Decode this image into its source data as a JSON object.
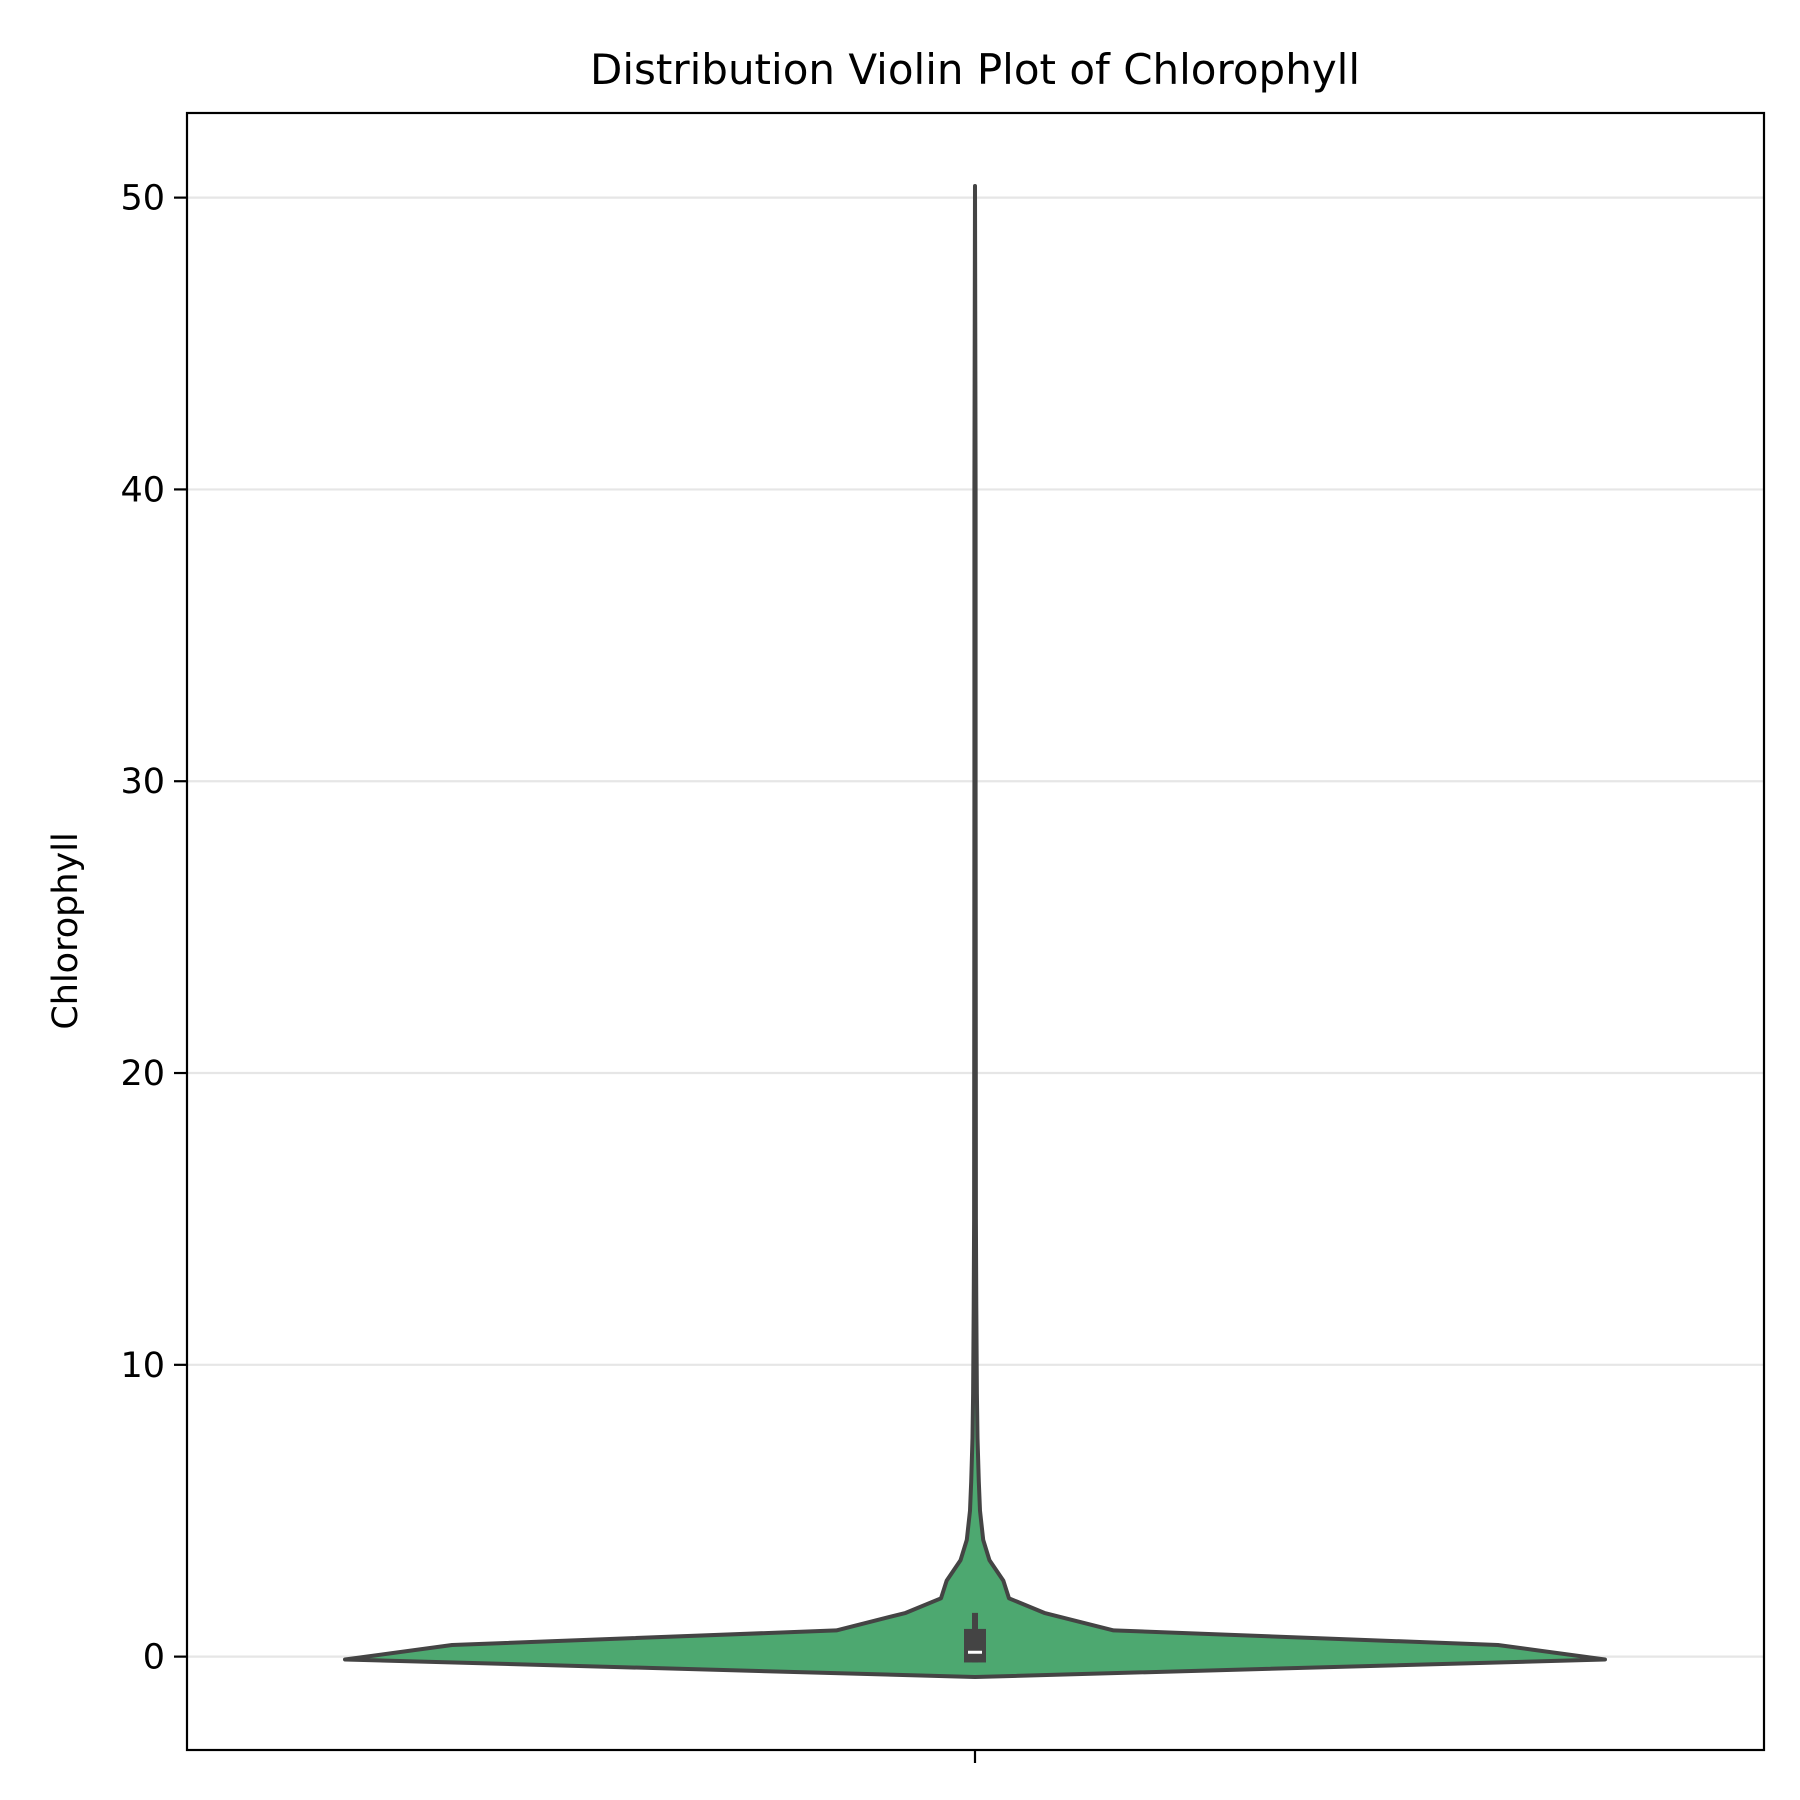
{
  "chart_data": {
    "type": "violin",
    "title": "Distribution Violin Plot of Chlorophyll",
    "xlabel": "",
    "ylabel": "Chlorophyll",
    "ylim": [
      -3.2,
      52.9
    ],
    "yticks": [
      0,
      10,
      20,
      30,
      40,
      50
    ],
    "ytick_labels": [
      "0",
      "10",
      "20",
      "30",
      "40",
      "50"
    ],
    "grid": {
      "y": true,
      "x": false
    },
    "colors": {
      "fill": "#4da870",
      "outline": "#444444",
      "grid": "#e6e6e6",
      "median": "#ffffff"
    },
    "violin": {
      "y": [
        -0.7,
        -0.1,
        0.4,
        0.9,
        1.5,
        2.0,
        2.6,
        3.3,
        4.0,
        5.0,
        6.0,
        7.5,
        9.0,
        12.0,
        15.0,
        20.0,
        30.0,
        40.0,
        50.4
      ],
      "density": [
        0.0,
        1.0,
        0.83,
        0.22,
        0.11,
        0.054,
        0.045,
        0.023,
        0.013,
        0.008,
        0.006,
        0.004,
        0.003,
        0.002,
        0.0015,
        0.0012,
        0.001,
        0.001,
        0.0
      ]
    },
    "box": {
      "q1": -0.2,
      "median": 0.15,
      "q3": 0.95,
      "whisker_low": -0.2,
      "whisker_high": 1.5
    }
  }
}
